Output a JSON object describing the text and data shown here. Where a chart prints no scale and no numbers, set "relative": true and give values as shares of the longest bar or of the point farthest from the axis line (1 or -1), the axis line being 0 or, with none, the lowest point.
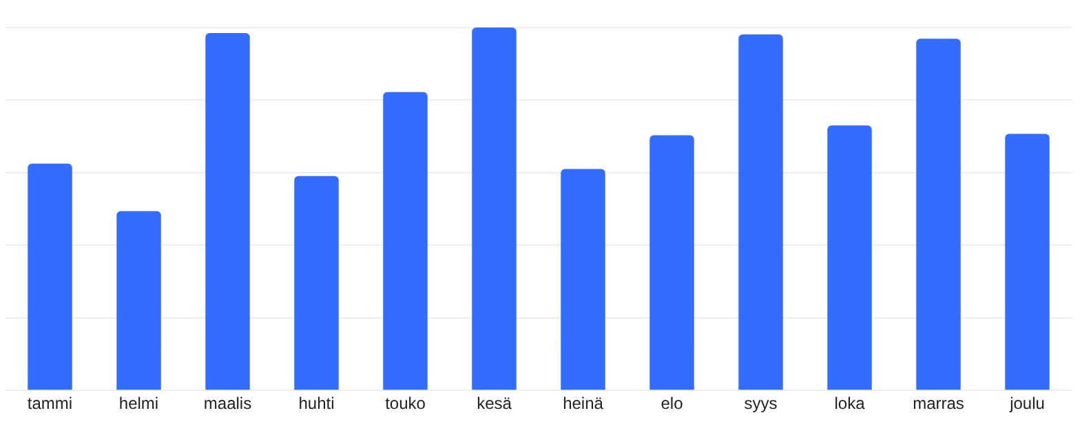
{
  "chart_data": {
    "type": "bar",
    "relative": true,
    "categories": [
      "tammi",
      "helmi",
      "maalis",
      "huhti",
      "touko",
      "kesä",
      "heinä",
      "elo",
      "syys",
      "loka",
      "marras",
      "joulu"
    ],
    "values": [
      0.625,
      0.494,
      0.985,
      0.591,
      0.822,
      1,
      0.61,
      0.703,
      0.981,
      0.73,
      0.969,
      0.707
    ],
    "color": "#336dff",
    "grid": "y"
  }
}
